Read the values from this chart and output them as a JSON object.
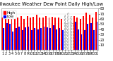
{
  "title": "Milwaukee Weather Dew Point Daily High/Low",
  "title_fontsize": 4.8,
  "days": [
    1,
    2,
    3,
    4,
    5,
    6,
    7,
    8,
    9,
    10,
    11,
    12,
    13,
    14,
    15,
    16,
    17,
    18,
    19,
    20,
    21,
    22,
    23,
    24,
    25,
    26,
    27,
    28,
    29,
    30,
    31
  ],
  "high_values": [
    62,
    68,
    65,
    65,
    68,
    62,
    65,
    60,
    65,
    62,
    64,
    68,
    63,
    62,
    65,
    62,
    64,
    62,
    62,
    60,
    68,
    72,
    65,
    65,
    62,
    60,
    65,
    72,
    68,
    62,
    74
  ],
  "low_values": [
    42,
    52,
    50,
    35,
    42,
    45,
    38,
    44,
    45,
    38,
    42,
    40,
    42,
    45,
    44,
    42,
    48,
    40,
    42,
    38,
    52,
    55,
    52,
    54,
    40,
    30,
    38,
    50,
    52,
    38,
    55
  ],
  "high_color": "#ff0000",
  "low_color": "#0000ff",
  "dashed_indices": [
    20,
    21,
    22
  ],
  "ylim": [
    0,
    80
  ],
  "yticks": [
    10,
    20,
    30,
    40,
    50,
    60,
    70,
    80
  ],
  "ytick_labels": [
    "10",
    "20",
    "30",
    "40",
    "50",
    "60",
    "70",
    "80"
  ],
  "bg_color": "#ffffff",
  "plot_bg": "#ffffff",
  "legend_high_label": "High",
  "legend_low_label": "Low",
  "bar_width": 0.42,
  "legend_fontsize": 3.8,
  "tick_fontsize": 3.5,
  "dashed_color": "#aaaaaa"
}
